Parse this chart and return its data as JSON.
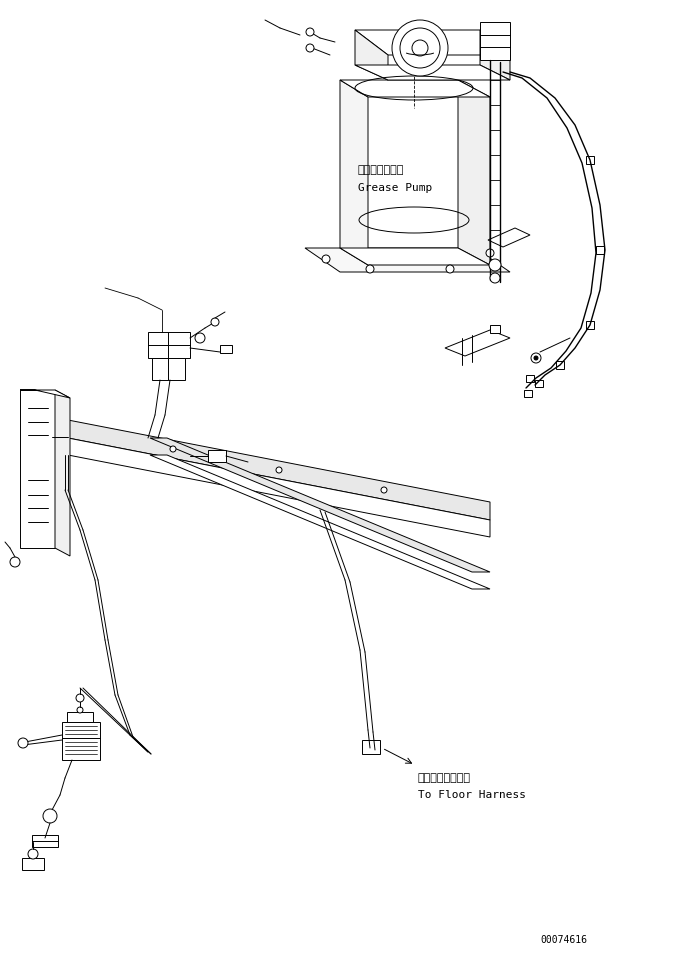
{
  "background_color": "#ffffff",
  "line_color": "#000000",
  "lw": 0.7,
  "grease_pump_jp": "グリースポンプ",
  "grease_pump_en": "Grease Pump",
  "floor_harness_jp": "フロアハーネスへ",
  "floor_harness_en": "To Floor Harness",
  "part_number": "00074616"
}
